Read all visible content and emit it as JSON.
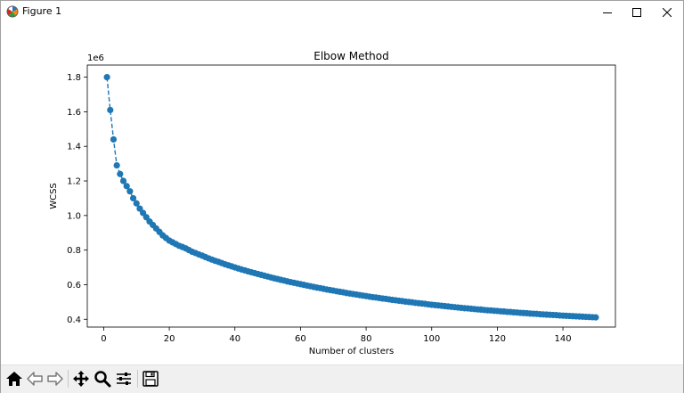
{
  "window": {
    "title": "Figure 1",
    "controls": [
      "minimize",
      "maximize",
      "close"
    ]
  },
  "toolbar": {
    "buttons": [
      {
        "name": "home",
        "icon": "home-icon"
      },
      {
        "name": "back",
        "icon": "arrow-left-icon"
      },
      {
        "name": "forward",
        "icon": "arrow-right-icon"
      },
      {
        "name": "pan",
        "icon": "move-icon"
      },
      {
        "name": "zoom",
        "icon": "magnifier-icon"
      },
      {
        "name": "configure-subplots",
        "icon": "sliders-icon"
      },
      {
        "name": "save",
        "icon": "floppy-disk-icon"
      }
    ]
  },
  "chart_data": {
    "type": "line",
    "title": "Elbow Method",
    "xlabel": "Number of clusters",
    "ylabel": "WCSS",
    "y_offset_label": "1e6",
    "xlim": [
      -5,
      156
    ],
    "ylim": [
      0.355,
      1.87
    ],
    "xticks": [
      0,
      20,
      40,
      60,
      80,
      100,
      120,
      140
    ],
    "yticks": [
      0.4,
      0.6,
      0.8,
      1.0,
      1.2,
      1.4,
      1.6,
      1.8
    ],
    "ytick_labels": [
      "0.4",
      "0.6",
      "0.8",
      "1.0",
      "1.2",
      "1.4",
      "1.6",
      "1.8"
    ],
    "grid": false,
    "line_style": "dashed",
    "marker": "circle",
    "color": "#1f77b4",
    "series": [
      {
        "x": [
          1,
          2,
          3,
          4,
          5,
          6,
          7,
          8,
          9,
          10,
          11,
          12,
          13,
          14,
          15,
          16,
          17,
          18,
          19,
          20,
          21,
          22,
          23,
          24,
          25,
          26,
          27,
          28,
          29,
          30,
          31,
          32,
          33,
          34,
          35,
          36,
          37,
          38,
          39,
          40,
          41,
          42,
          43,
          44,
          45,
          46,
          47,
          48,
          49,
          50,
          51,
          52,
          53,
          54,
          55,
          56,
          57,
          58,
          59,
          60,
          61,
          62,
          63,
          64,
          65,
          66,
          67,
          68,
          69,
          70,
          71,
          72,
          73,
          74,
          75,
          76,
          77,
          78,
          79,
          80,
          81,
          82,
          83,
          84,
          85,
          86,
          87,
          88,
          89,
          90,
          91,
          92,
          93,
          94,
          95,
          96,
          97,
          98,
          99,
          100,
          101,
          102,
          103,
          104,
          105,
          106,
          107,
          108,
          109,
          110,
          111,
          112,
          113,
          114,
          115,
          116,
          117,
          118,
          119,
          120,
          121,
          122,
          123,
          124,
          125,
          126,
          127,
          128,
          129,
          130,
          131,
          132,
          133,
          134,
          135,
          136,
          137,
          138,
          139,
          140,
          141,
          142,
          143,
          144,
          145,
          146,
          147,
          148,
          149,
          150
        ],
        "y": [
          1.8,
          1.61,
          1.44,
          1.29,
          1.24,
          1.2,
          1.17,
          1.14,
          1.1,
          1.07,
          1.04,
          1.015,
          0.99,
          0.965,
          0.945,
          0.925,
          0.905,
          0.885,
          0.87,
          0.855,
          0.845,
          0.835,
          0.825,
          0.818,
          0.81,
          0.8,
          0.79,
          0.783,
          0.775,
          0.768,
          0.76,
          0.752,
          0.745,
          0.738,
          0.732,
          0.725,
          0.718,
          0.712,
          0.706,
          0.7,
          0.694,
          0.688,
          0.683,
          0.677,
          0.672,
          0.667,
          0.662,
          0.657,
          0.652,
          0.647,
          0.642,
          0.637,
          0.633,
          0.628,
          0.624,
          0.619,
          0.615,
          0.611,
          0.607,
          0.603,
          0.599,
          0.595,
          0.591,
          0.587,
          0.583,
          0.58,
          0.576,
          0.572,
          0.569,
          0.566,
          0.562,
          0.559,
          0.556,
          0.552,
          0.549,
          0.546,
          0.543,
          0.54,
          0.537,
          0.534,
          0.531,
          0.528,
          0.526,
          0.523,
          0.52,
          0.518,
          0.515,
          0.512,
          0.51,
          0.507,
          0.505,
          0.502,
          0.5,
          0.498,
          0.495,
          0.493,
          0.491,
          0.489,
          0.486,
          0.484,
          0.482,
          0.48,
          0.478,
          0.476,
          0.474,
          0.472,
          0.47,
          0.468,
          0.466,
          0.464,
          0.463,
          0.461,
          0.459,
          0.457,
          0.456,
          0.454,
          0.452,
          0.451,
          0.449,
          0.448,
          0.446,
          0.445,
          0.443,
          0.442,
          0.44,
          0.439,
          0.437,
          0.436,
          0.435,
          0.433,
          0.432,
          0.431,
          0.429,
          0.428,
          0.427,
          0.426,
          0.425,
          0.424,
          0.422,
          0.421,
          0.42,
          0.419,
          0.418,
          0.417,
          0.416,
          0.415,
          0.414,
          0.413,
          0.412,
          0.411
        ]
      }
    ]
  }
}
